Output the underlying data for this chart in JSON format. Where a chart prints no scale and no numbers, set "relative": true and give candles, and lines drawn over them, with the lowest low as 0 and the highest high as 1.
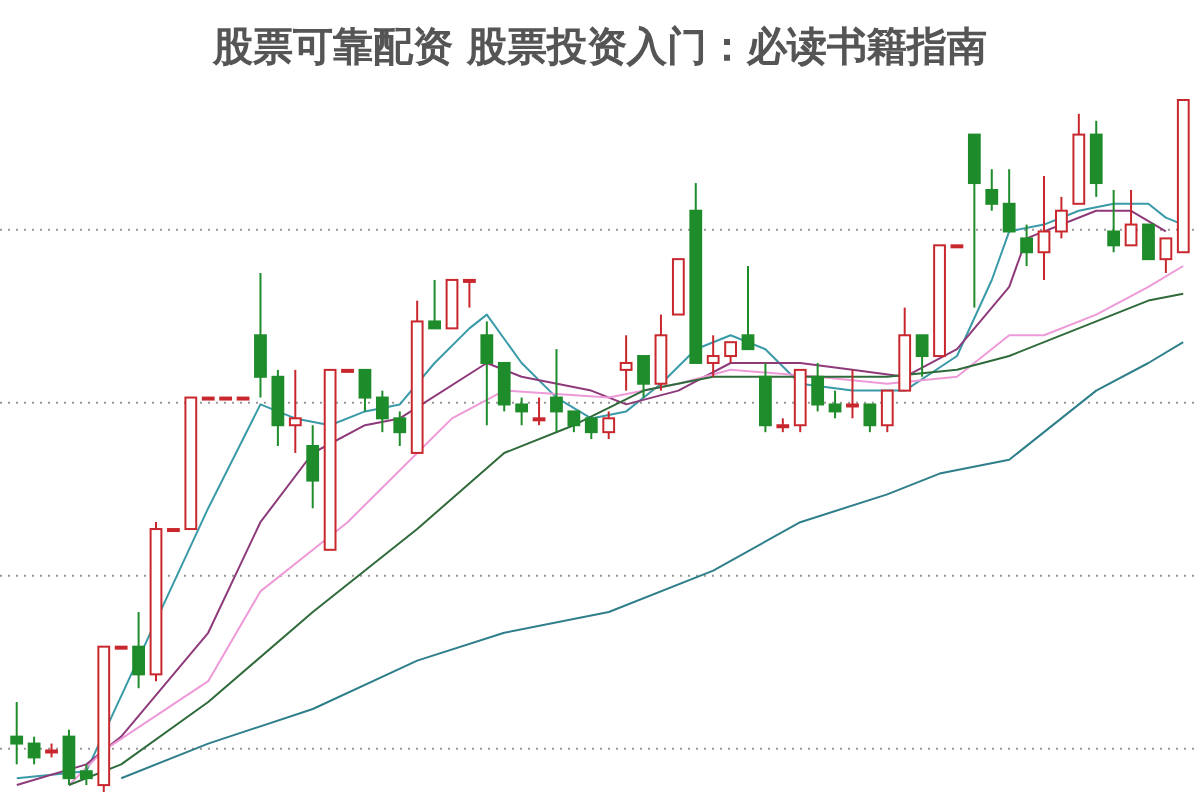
{
  "chart_data": {
    "type": "candlestick",
    "title": "股票可靠配资 股票投资入门：必读书籍指南",
    "relative": true,
    "grid": "y",
    "categories": [
      null,
      null,
      null,
      null,
      null,
      null,
      null,
      null,
      null,
      null,
      null,
      null,
      null,
      null,
      null,
      null,
      null,
      null,
      null,
      null,
      null,
      null,
      null,
      null,
      null,
      null,
      null,
      null,
      null,
      null,
      null,
      null,
      null,
      null,
      null,
      null,
      null,
      null,
      null,
      null,
      null,
      null,
      null,
      null,
      null,
      null,
      null,
      null,
      null,
      null,
      null,
      null,
      null,
      null,
      null,
      null,
      null,
      null,
      null,
      null,
      null,
      null,
      null,
      null,
      null,
      null,
      null,
      null
    ],
    "ohlc": [
      [
        0.08,
        0.13,
        0.04,
        0.07
      ],
      [
        0.07,
        0.08,
        0.04,
        0.05
      ],
      [
        0.06,
        0.07,
        0.05,
        0.06
      ],
      [
        0.08,
        0.09,
        0.01,
        0.02
      ],
      [
        0.03,
        0.04,
        0.01,
        0.02
      ],
      [
        0.01,
        0.21,
        0,
        0.21
      ],
      [
        0.21,
        0.21,
        0.21,
        0.21
      ],
      [
        0.21,
        0.26,
        0.15,
        0.17
      ],
      [
        0.17,
        0.39,
        0.16,
        0.38
      ],
      [
        0.38,
        0.38,
        0.38,
        0.38
      ],
      [
        0.38,
        0.57,
        0.38,
        0.57
      ],
      [
        0.57,
        0.57,
        0.57,
        0.57
      ],
      [
        0.57,
        0.57,
        0.57,
        0.57
      ],
      [
        0.57,
        0.57,
        0.57,
        0.57
      ],
      [
        0.66,
        0.75,
        0.57,
        0.6
      ],
      [
        0.6,
        0.61,
        0.5,
        0.53
      ],
      [
        0.53,
        0.61,
        0.49,
        0.54
      ],
      [
        0.5,
        0.53,
        0.41,
        0.45
      ],
      [
        0.35,
        0.61,
        0.35,
        0.61
      ],
      [
        0.61,
        0.61,
        0.61,
        0.61
      ],
      [
        0.61,
        0.61,
        0.55,
        0.57
      ],
      [
        0.57,
        0.58,
        0.52,
        0.54
      ],
      [
        0.54,
        0.55,
        0.5,
        0.52
      ],
      [
        0.49,
        0.71,
        0.49,
        0.68
      ],
      [
        0.68,
        0.74,
        0.67,
        0.67
      ],
      [
        0.67,
        0.74,
        0.67,
        0.74
      ],
      [
        0.74,
        0.74,
        0.7,
        0.74
      ],
      [
        0.66,
        0.68,
        0.53,
        0.62
      ],
      [
        0.62,
        0.62,
        0.55,
        0.56
      ],
      [
        0.56,
        0.57,
        0.53,
        0.55
      ],
      [
        0.54,
        0.57,
        0.53,
        0.54
      ],
      [
        0.57,
        0.64,
        0.52,
        0.55
      ],
      [
        0.55,
        0.55,
        0.52,
        0.53
      ],
      [
        0.54,
        0.54,
        0.51,
        0.52
      ],
      [
        0.52,
        0.55,
        0.51,
        0.54
      ],
      [
        0.61,
        0.66,
        0.58,
        0.62
      ],
      [
        0.63,
        0.63,
        0.57,
        0.59
      ],
      [
        0.59,
        0.69,
        0.58,
        0.66
      ],
      [
        0.69,
        0.77,
        0.69,
        0.77
      ],
      [
        0.84,
        0.88,
        0.62,
        0.62
      ],
      [
        0.62,
        0.66,
        0.6,
        0.63
      ],
      [
        0.63,
        0.65,
        0.62,
        0.65
      ],
      [
        0.66,
        0.76,
        0.64,
        0.64
      ],
      [
        0.6,
        0.62,
        0.52,
        0.53
      ],
      [
        0.53,
        0.54,
        0.52,
        0.53
      ],
      [
        0.53,
        0.61,
        0.52,
        0.61
      ],
      [
        0.6,
        0.62,
        0.55,
        0.56
      ],
      [
        0.56,
        0.58,
        0.54,
        0.55
      ],
      [
        0.56,
        0.61,
        0.54,
        0.56
      ],
      [
        0.56,
        0.56,
        0.52,
        0.53
      ],
      [
        0.53,
        0.58,
        0.52,
        0.58
      ],
      [
        0.58,
        0.7,
        0.58,
        0.66
      ],
      [
        0.66,
        0.66,
        0.6,
        0.63
      ],
      [
        0.63,
        0.79,
        0.63,
        0.79
      ],
      [
        0.79,
        0.79,
        0.79,
        0.79
      ],
      [
        0.95,
        0.95,
        0.7,
        0.88
      ],
      [
        0.87,
        0.9,
        0.84,
        0.85
      ],
      [
        0.85,
        0.9,
        0.81,
        0.81
      ],
      [
        0.8,
        0.82,
        0.76,
        0.78
      ],
      [
        0.78,
        0.89,
        0.74,
        0.81
      ],
      [
        0.81,
        0.86,
        0.8,
        0.84
      ],
      [
        0.85,
        0.98,
        0.85,
        0.95
      ],
      [
        0.95,
        0.97,
        0.86,
        0.88
      ],
      [
        0.81,
        0.87,
        0.78,
        0.79
      ],
      [
        0.79,
        0.87,
        0.79,
        0.82
      ],
      [
        0.82,
        0.82,
        0.77,
        0.77
      ],
      [
        0.77,
        0.8,
        0.75,
        0.8
      ],
      [
        0.78,
        1.0,
        0.78,
        1.0
      ]
    ],
    "series": [
      {
        "type": "line",
        "color": "#3a9aa8",
        "values": [
          0.02,
          null,
          null,
          null,
          0.03,
          null,
          null,
          null,
          null,
          null,
          null,
          0.41,
          null,
          null,
          0.56,
          null,
          0.54,
          null,
          0.53,
          null,
          0.55,
          null,
          0.56,
          null,
          0.62,
          null,
          0.67,
          0.69,
          null,
          0.62,
          null,
          0.57,
          null,
          0.54,
          null,
          0.55,
          null,
          0.59,
          null,
          0.64,
          null,
          0.66,
          null,
          0.64,
          null,
          0.59,
          null,
          null,
          0.58,
          null,
          null,
          0.58,
          null,
          null,
          0.63,
          null,
          0.74,
          0.81,
          null,
          0.82,
          null,
          0.84,
          null,
          0.85,
          null,
          0.85,
          0.83,
          0.82
        ]
      },
      {
        "type": "line",
        "color": "#8e3a7a",
        "values": [
          0.01,
          null,
          null,
          null,
          0.04,
          null,
          0.08,
          null,
          null,
          null,
          null,
          0.23,
          null,
          null,
          0.39,
          null,
          null,
          0.49,
          null,
          null,
          0.53,
          null,
          0.54,
          null,
          null,
          null,
          null,
          0.62,
          null,
          0.6,
          null,
          null,
          null,
          0.58,
          null,
          0.56,
          null,
          null,
          0.58,
          null,
          null,
          0.62,
          null,
          null,
          null,
          0.62,
          null,
          null,
          0.61,
          null,
          null,
          0.6,
          null,
          null,
          0.64,
          null,
          null,
          0.73,
          0.8,
          null,
          null,
          null,
          0.84,
          null,
          0.84,
          null,
          0.81,
          null
        ]
      },
      {
        "type": "line",
        "color": "#ee9ad8",
        "values": [
          null,
          null,
          null,
          0.01,
          null,
          0.06,
          null,
          null,
          null,
          null,
          null,
          0.16,
          null,
          null,
          0.29,
          null,
          null,
          null,
          null,
          0.39,
          null,
          null,
          null,
          0.49,
          null,
          0.54,
          null,
          null,
          0.58,
          null,
          null,
          null,
          null,
          null,
          0.57,
          null,
          null,
          null,
          0.59,
          null,
          null,
          0.61,
          null,
          null,
          null,
          null,
          0.6,
          null,
          null,
          null,
          0.59,
          null,
          null,
          null,
          0.6,
          null,
          null,
          0.66,
          null,
          0.66,
          null,
          null,
          0.69,
          null,
          null,
          0.73,
          null,
          0.76
        ]
      },
      {
        "type": "line",
        "color": "#2f6b3a",
        "values": [
          null,
          null,
          null,
          0.01,
          null,
          null,
          0.04,
          null,
          null,
          null,
          null,
          0.13,
          null,
          null,
          null,
          null,
          null,
          0.26,
          null,
          null,
          null,
          null,
          null,
          0.38,
          null,
          null,
          null,
          null,
          0.49,
          null,
          null,
          null,
          0.53,
          null,
          null,
          null,
          0.58,
          null,
          null,
          null,
          0.6,
          null,
          null,
          null,
          null,
          0.6,
          null,
          null,
          null,
          null,
          0.6,
          null,
          null,
          null,
          0.61,
          null,
          null,
          0.63,
          null,
          null,
          null,
          null,
          0.68,
          null,
          null,
          0.71,
          null,
          0.72
        ]
      },
      {
        "type": "line",
        "color": "#2f7f8a",
        "values": [
          null,
          null,
          null,
          null,
          null,
          null,
          0.02,
          null,
          null,
          null,
          null,
          0.07,
          null,
          null,
          null,
          null,
          null,
          0.12,
          null,
          null,
          null,
          null,
          null,
          0.19,
          null,
          null,
          null,
          null,
          0.23,
          null,
          null,
          null,
          null,
          null,
          0.26,
          null,
          null,
          null,
          null,
          null,
          0.32,
          null,
          null,
          null,
          null,
          0.39,
          null,
          null,
          null,
          null,
          0.43,
          null,
          null,
          0.46,
          null,
          null,
          null,
          0.48,
          null,
          null,
          null,
          null,
          0.58,
          null,
          null,
          0.62,
          null,
          0.65
        ]
      }
    ]
  }
}
